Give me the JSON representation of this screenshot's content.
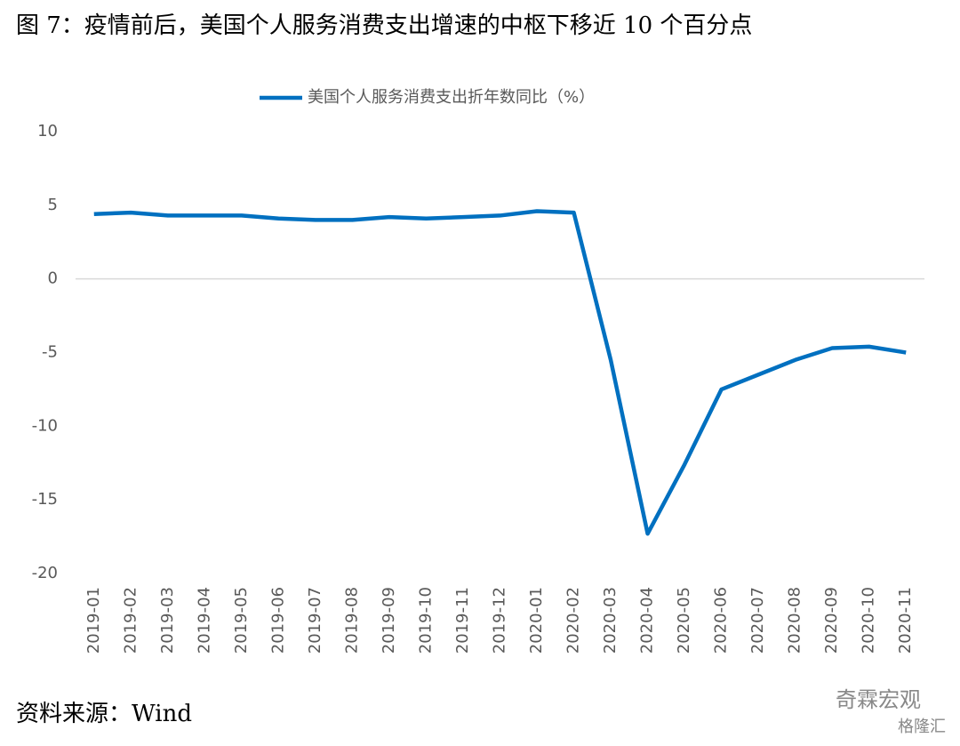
{
  "chart_data": {
    "type": "line",
    "title": "图 7：疫情前后，美国个人服务消费支出增速的中枢下移近 10 个百分点",
    "categories": [
      "2019-01",
      "2019-02",
      "2019-03",
      "2019-04",
      "2019-05",
      "2019-06",
      "2019-07",
      "2019-08",
      "2019-09",
      "2019-10",
      "2019-11",
      "2019-12",
      "2020-01",
      "2020-02",
      "2020-03",
      "2020-04",
      "2020-05",
      "2020-06",
      "2020-07",
      "2020-08",
      "2020-09",
      "2020-10",
      "2020-11"
    ],
    "series": [
      {
        "name": "美国个人服务消费支出折年数同比（%）",
        "color": "#0070c0",
        "values": [
          4.4,
          4.5,
          4.3,
          4.3,
          4.3,
          4.1,
          4.0,
          4.0,
          4.2,
          4.1,
          4.2,
          4.3,
          4.6,
          4.5,
          -5.5,
          -17.3,
          -12.6,
          -7.5,
          -6.5,
          -5.5,
          -4.7,
          -4.6,
          -5.0
        ]
      }
    ],
    "ylim": [
      -20,
      10
    ],
    "yticks": [
      -20,
      -15,
      -10,
      -5,
      0,
      5,
      10
    ],
    "grid": false,
    "legend": "top",
    "source": "资料来源：Wind",
    "watermarks": [
      "奇霖宏观",
      "格隆汇"
    ]
  }
}
